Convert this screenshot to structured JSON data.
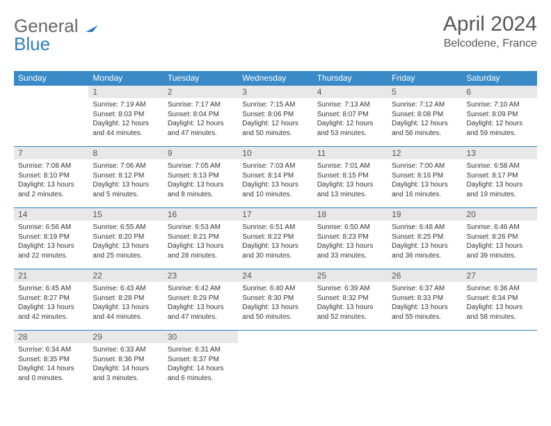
{
  "logo": {
    "part1": "General",
    "part2": "Blue"
  },
  "title": "April 2024",
  "location": "Belcodene, France",
  "colors": {
    "header_bg": "#3a8ac8",
    "border": "#2d7dc4",
    "daynum_bg": "#e8e8e8",
    "text": "#333333",
    "logo_gray": "#666666",
    "logo_blue": "#2d7dc4"
  },
  "weekdays": [
    "Sunday",
    "Monday",
    "Tuesday",
    "Wednesday",
    "Thursday",
    "Friday",
    "Saturday"
  ],
  "grid": [
    [
      {
        "n": "",
        "lines": []
      },
      {
        "n": "1",
        "lines": [
          "Sunrise: 7:19 AM",
          "Sunset: 8:03 PM",
          "Daylight: 12 hours",
          "and 44 minutes."
        ]
      },
      {
        "n": "2",
        "lines": [
          "Sunrise: 7:17 AM",
          "Sunset: 8:04 PM",
          "Daylight: 12 hours",
          "and 47 minutes."
        ]
      },
      {
        "n": "3",
        "lines": [
          "Sunrise: 7:15 AM",
          "Sunset: 8:06 PM",
          "Daylight: 12 hours",
          "and 50 minutes."
        ]
      },
      {
        "n": "4",
        "lines": [
          "Sunrise: 7:13 AM",
          "Sunset: 8:07 PM",
          "Daylight: 12 hours",
          "and 53 minutes."
        ]
      },
      {
        "n": "5",
        "lines": [
          "Sunrise: 7:12 AM",
          "Sunset: 8:08 PM",
          "Daylight: 12 hours",
          "and 56 minutes."
        ]
      },
      {
        "n": "6",
        "lines": [
          "Sunrise: 7:10 AM",
          "Sunset: 8:09 PM",
          "Daylight: 12 hours",
          "and 59 minutes."
        ]
      }
    ],
    [
      {
        "n": "7",
        "lines": [
          "Sunrise: 7:08 AM",
          "Sunset: 8:10 PM",
          "Daylight: 13 hours",
          "and 2 minutes."
        ]
      },
      {
        "n": "8",
        "lines": [
          "Sunrise: 7:06 AM",
          "Sunset: 8:12 PM",
          "Daylight: 13 hours",
          "and 5 minutes."
        ]
      },
      {
        "n": "9",
        "lines": [
          "Sunrise: 7:05 AM",
          "Sunset: 8:13 PM",
          "Daylight: 13 hours",
          "and 8 minutes."
        ]
      },
      {
        "n": "10",
        "lines": [
          "Sunrise: 7:03 AM",
          "Sunset: 8:14 PM",
          "Daylight: 13 hours",
          "and 10 minutes."
        ]
      },
      {
        "n": "11",
        "lines": [
          "Sunrise: 7:01 AM",
          "Sunset: 8:15 PM",
          "Daylight: 13 hours",
          "and 13 minutes."
        ]
      },
      {
        "n": "12",
        "lines": [
          "Sunrise: 7:00 AM",
          "Sunset: 8:16 PM",
          "Daylight: 13 hours",
          "and 16 minutes."
        ]
      },
      {
        "n": "13",
        "lines": [
          "Sunrise: 6:58 AM",
          "Sunset: 8:17 PM",
          "Daylight: 13 hours",
          "and 19 minutes."
        ]
      }
    ],
    [
      {
        "n": "14",
        "lines": [
          "Sunrise: 6:56 AM",
          "Sunset: 8:19 PM",
          "Daylight: 13 hours",
          "and 22 minutes."
        ]
      },
      {
        "n": "15",
        "lines": [
          "Sunrise: 6:55 AM",
          "Sunset: 8:20 PM",
          "Daylight: 13 hours",
          "and 25 minutes."
        ]
      },
      {
        "n": "16",
        "lines": [
          "Sunrise: 6:53 AM",
          "Sunset: 8:21 PM",
          "Daylight: 13 hours",
          "and 28 minutes."
        ]
      },
      {
        "n": "17",
        "lines": [
          "Sunrise: 6:51 AM",
          "Sunset: 8:22 PM",
          "Daylight: 13 hours",
          "and 30 minutes."
        ]
      },
      {
        "n": "18",
        "lines": [
          "Sunrise: 6:50 AM",
          "Sunset: 8:23 PM",
          "Daylight: 13 hours",
          "and 33 minutes."
        ]
      },
      {
        "n": "19",
        "lines": [
          "Sunrise: 6:48 AM",
          "Sunset: 8:25 PM",
          "Daylight: 13 hours",
          "and 36 minutes."
        ]
      },
      {
        "n": "20",
        "lines": [
          "Sunrise: 6:46 AM",
          "Sunset: 8:26 PM",
          "Daylight: 13 hours",
          "and 39 minutes."
        ]
      }
    ],
    [
      {
        "n": "21",
        "lines": [
          "Sunrise: 6:45 AM",
          "Sunset: 8:27 PM",
          "Daylight: 13 hours",
          "and 42 minutes."
        ]
      },
      {
        "n": "22",
        "lines": [
          "Sunrise: 6:43 AM",
          "Sunset: 8:28 PM",
          "Daylight: 13 hours",
          "and 44 minutes."
        ]
      },
      {
        "n": "23",
        "lines": [
          "Sunrise: 6:42 AM",
          "Sunset: 8:29 PM",
          "Daylight: 13 hours",
          "and 47 minutes."
        ]
      },
      {
        "n": "24",
        "lines": [
          "Sunrise: 6:40 AM",
          "Sunset: 8:30 PM",
          "Daylight: 13 hours",
          "and 50 minutes."
        ]
      },
      {
        "n": "25",
        "lines": [
          "Sunrise: 6:39 AM",
          "Sunset: 8:32 PM",
          "Daylight: 13 hours",
          "and 52 minutes."
        ]
      },
      {
        "n": "26",
        "lines": [
          "Sunrise: 6:37 AM",
          "Sunset: 8:33 PM",
          "Daylight: 13 hours",
          "and 55 minutes."
        ]
      },
      {
        "n": "27",
        "lines": [
          "Sunrise: 6:36 AM",
          "Sunset: 8:34 PM",
          "Daylight: 13 hours",
          "and 58 minutes."
        ]
      }
    ],
    [
      {
        "n": "28",
        "lines": [
          "Sunrise: 6:34 AM",
          "Sunset: 8:35 PM",
          "Daylight: 14 hours",
          "and 0 minutes."
        ]
      },
      {
        "n": "29",
        "lines": [
          "Sunrise: 6:33 AM",
          "Sunset: 8:36 PM",
          "Daylight: 14 hours",
          "and 3 minutes."
        ]
      },
      {
        "n": "30",
        "lines": [
          "Sunrise: 6:31 AM",
          "Sunset: 8:37 PM",
          "Daylight: 14 hours",
          "and 6 minutes."
        ]
      },
      {
        "n": "",
        "lines": []
      },
      {
        "n": "",
        "lines": []
      },
      {
        "n": "",
        "lines": []
      },
      {
        "n": "",
        "lines": []
      }
    ]
  ]
}
